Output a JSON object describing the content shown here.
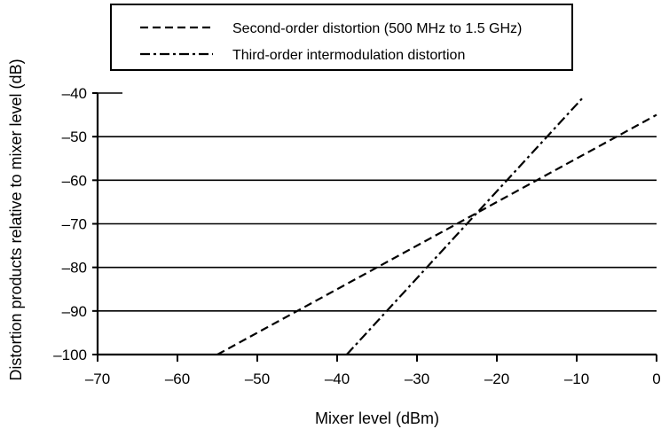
{
  "chart_data": {
    "type": "line",
    "xlabel": "Mixer level (dBm)",
    "ylabel": "Distortion products relative to mixer level (dB)",
    "xlim": [
      -70,
      0
    ],
    "ylim": [
      -100,
      -40
    ],
    "x_ticks": [
      -70,
      -60,
      -50,
      -40,
      -30,
      -20,
      -10,
      0
    ],
    "x_tick_labels": [
      "–70",
      "–60",
      "–50",
      "–40",
      "–30",
      "–20",
      "–10",
      "0"
    ],
    "y_ticks": [
      -40,
      -50,
      -60,
      -70,
      -80,
      -90,
      -100
    ],
    "y_tick_labels": [
      "–40",
      "–50",
      "–60",
      "–70",
      "–80",
      "–90",
      "–100"
    ],
    "grid": "horizontal",
    "legend_position": "top",
    "series": [
      {
        "name": "Second-order distortion (500 MHz to 1.5 GHz)",
        "style": "dashed",
        "color": "#000000",
        "x": [
          -55,
          0
        ],
        "y": [
          -100,
          -45
        ]
      },
      {
        "name": "Third-order intermodulation distortion",
        "style": "dash-dot",
        "color": "#000000",
        "x": [
          -38.8,
          -9.2
        ],
        "y": [
          -100,
          -41
        ]
      }
    ]
  }
}
